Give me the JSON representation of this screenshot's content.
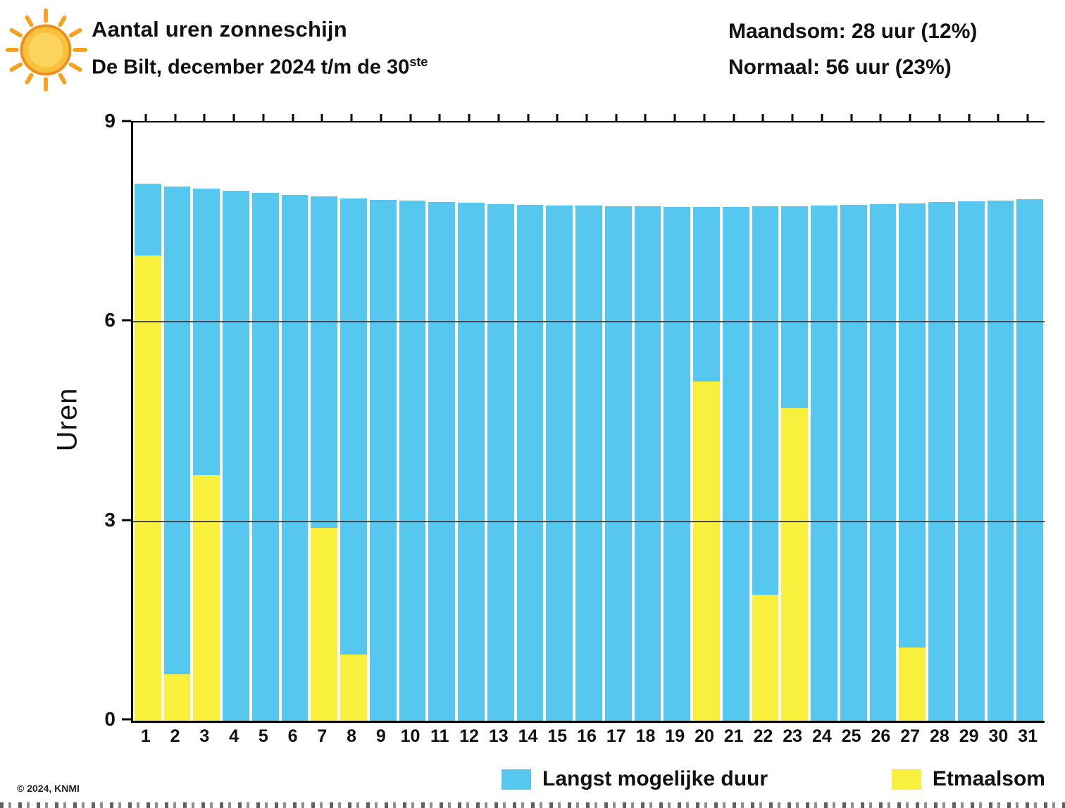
{
  "header": {
    "title": "Aantal uren zonneschijn",
    "subtitle_prefix": "De Bilt, december 2024 t/m de 30",
    "subtitle_sup": "ste",
    "maandsom": "Maandsom: 28 uur (12%)",
    "normaal": "Normaal: 56 uur (23%)"
  },
  "icons": {
    "sun": "sun-icon"
  },
  "colors": {
    "bar_blue": "#56c8f0",
    "bar_yellow": "#f8f03c",
    "gridline": "#4a4a4a",
    "axis": "#000000",
    "sun_core": "#f9c23c",
    "sun_edge": "#ef8e1f"
  },
  "legend": [
    {
      "label": "Langst mogelijke duur",
      "color": "#56c8f0"
    },
    {
      "label": "Etmaalsom",
      "color": "#f8f03c"
    }
  ],
  "footer": {
    "copyright": "© 2024, KNMI"
  },
  "chart_data": {
    "type": "bar",
    "title": "Aantal uren zonneschijn",
    "subtitle": "De Bilt, december 2024 t/m de 30ste",
    "xlabel": "",
    "ylabel": "Uren",
    "ylim": [
      0,
      9
    ],
    "yticks": [
      0,
      3,
      6,
      9
    ],
    "gridlines": [
      3,
      6
    ],
    "grid": true,
    "legend_position": "bottom",
    "categories": [
      1,
      2,
      3,
      4,
      5,
      6,
      7,
      8,
      9,
      10,
      11,
      12,
      13,
      14,
      15,
      16,
      17,
      18,
      19,
      20,
      21,
      22,
      23,
      24,
      25,
      26,
      27,
      28,
      29,
      30,
      31
    ],
    "series": [
      {
        "name": "Langst mogelijke duur",
        "color": "#56c8f0",
        "values": [
          8.08,
          8.04,
          8.01,
          7.97,
          7.94,
          7.91,
          7.89,
          7.86,
          7.84,
          7.82,
          7.8,
          7.79,
          7.77,
          7.76,
          7.75,
          7.75,
          7.74,
          7.74,
          7.73,
          7.73,
          7.73,
          7.74,
          7.74,
          7.75,
          7.76,
          7.77,
          7.78,
          7.8,
          7.81,
          7.83,
          7.85
        ]
      },
      {
        "name": "Etmaalsom",
        "color": "#f8f03c",
        "values": [
          7.0,
          0.7,
          3.7,
          0,
          0,
          0,
          2.9,
          1.0,
          0,
          0,
          0,
          0,
          0,
          0,
          0,
          0,
          0,
          0,
          0,
          5.1,
          0,
          1.9,
          4.7,
          0,
          0,
          0,
          1.1,
          0,
          0,
          0,
          0
        ]
      }
    ]
  }
}
